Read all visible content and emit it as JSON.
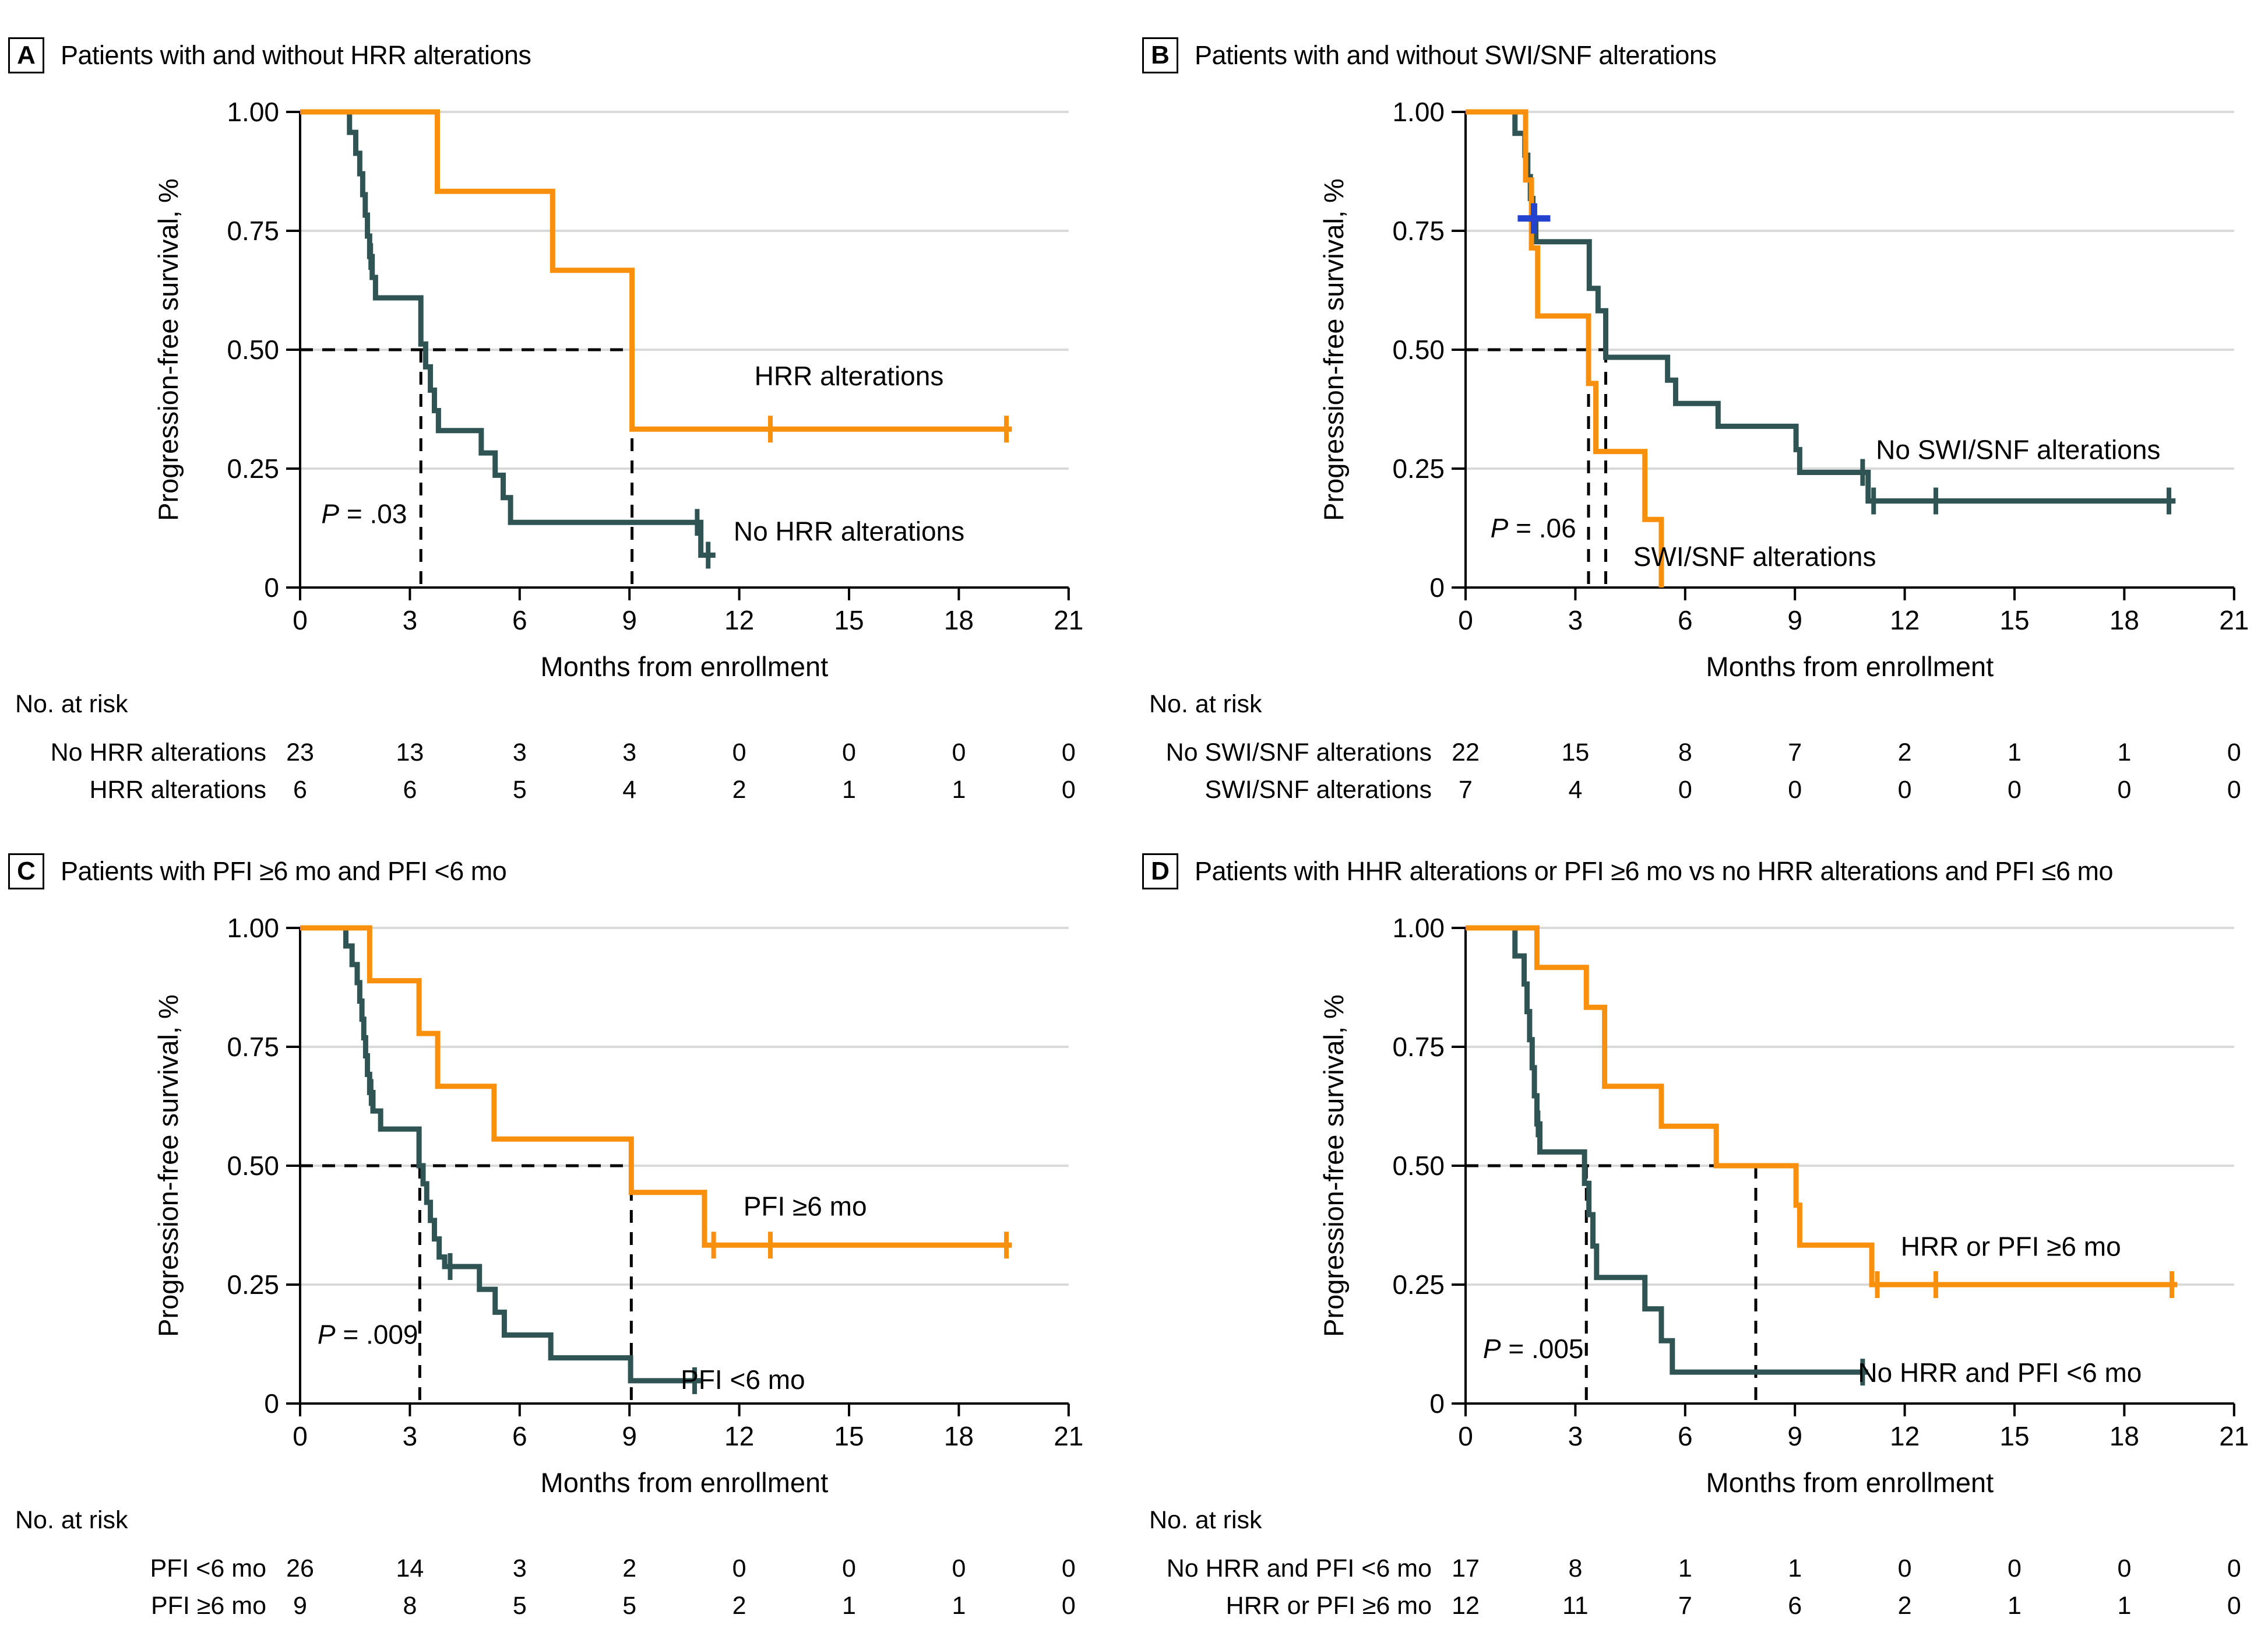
{
  "colors": {
    "orange": "#F8900E",
    "teal": "#2F5453",
    "blue_censor": "#2342CF",
    "grid": "#D9D9D9",
    "axis": "#000000"
  },
  "risk_header": "No. at risk",
  "axes": {
    "x_label": "Months from enrollment",
    "y_label": "Progression-free survival, %",
    "x_ticks": [
      0,
      3,
      6,
      9,
      12,
      15,
      18,
      21
    ],
    "y_ticks": [
      {
        "label": "1.00",
        "value": 1.0
      },
      {
        "label": "0.75",
        "value": 0.75
      },
      {
        "label": "0.50",
        "value": 0.5
      },
      {
        "label": "0.25",
        "value": 0.25
      },
      {
        "label": "0",
        "value": 0.0
      }
    ],
    "x_range": [
      0,
      21
    ],
    "y_range": [
      0,
      1
    ]
  },
  "chart_data": [
    {
      "type": "km_step",
      "letter": "A",
      "title": "Patients with and without HRR alterations",
      "p_value": "P = .03",
      "p_pos": [
        1.75,
        0.155
      ],
      "median_dashes": {
        "h_end": 9.07,
        "verticals": [
          3.3,
          9.07
        ]
      },
      "series": [
        {
          "name": "No HRR alterations",
          "color": "teal",
          "label_pos": [
            15.0,
            0.118
          ],
          "start": [
            0,
            1
          ],
          "steps": [
            [
              1.35,
              0.957
            ],
            [
              1.52,
              0.913
            ],
            [
              1.63,
              0.87
            ],
            [
              1.71,
              0.826
            ],
            [
              1.78,
              0.783
            ],
            [
              1.84,
              0.739
            ],
            [
              1.9,
              0.696
            ],
            [
              1.97,
              0.652
            ],
            [
              2.06,
              0.609
            ],
            [
              3.3,
              0.512
            ],
            [
              3.43,
              0.464
            ],
            [
              3.56,
              0.415
            ],
            [
              3.67,
              0.372
            ],
            [
              3.78,
              0.33
            ],
            [
              4.95,
              0.283
            ],
            [
              5.33,
              0.236
            ],
            [
              5.55,
              0.189
            ],
            [
              5.75,
              0.137
            ],
            [
              10.95,
              0.068
            ]
          ],
          "end": 11.35,
          "censors": [
            [
              1.93,
              0.696
            ],
            [
              10.85,
              0.137
            ],
            [
              11.15,
              0.068
            ]
          ]
        },
        {
          "name": "HRR alterations",
          "color": "orange",
          "label_pos": [
            15.0,
            0.445
          ],
          "start": [
            0,
            1
          ],
          "steps": [
            [
              3.75,
              0.833
            ],
            [
              6.9,
              0.667
            ],
            [
              9.07,
              0.333
            ]
          ],
          "end": 19.45,
          "censors": [
            [
              12.85,
              0.333
            ],
            [
              19.3,
              0.333
            ]
          ]
        }
      ],
      "risk_rows": [
        {
          "label": "No HRR alterations",
          "counts": [
            23,
            13,
            3,
            3,
            0,
            0,
            0,
            0
          ]
        },
        {
          "label": "HRR alterations",
          "counts": [
            6,
            6,
            5,
            4,
            2,
            1,
            1,
            0
          ]
        }
      ]
    },
    {
      "type": "km_step",
      "letter": "B",
      "title": "Patients with and without SWI/SNF alterations",
      "p_value": "P = .06",
      "p_pos": [
        1.85,
        0.125
      ],
      "median_dashes": {
        "h_end": 3.83,
        "verticals": [
          3.36,
          3.83
        ]
      },
      "blue_censor": [
        1.87,
        0.776
      ],
      "series": [
        {
          "name": "No SWI/SNF alterations",
          "color": "teal",
          "label_pos": [
            15.1,
            0.29
          ],
          "start": [
            0,
            1
          ],
          "steps": [
            [
              1.35,
              0.955
            ],
            [
              1.62,
              0.909
            ],
            [
              1.7,
              0.864
            ],
            [
              1.77,
              0.818
            ],
            [
              1.84,
              0.773
            ],
            [
              1.92,
              0.727
            ],
            [
              3.38,
              0.629
            ],
            [
              3.62,
              0.582
            ],
            [
              3.83,
              0.484
            ],
            [
              5.52,
              0.436
            ],
            [
              5.74,
              0.387
            ],
            [
              6.9,
              0.339
            ],
            [
              9.03,
              0.29
            ],
            [
              9.13,
              0.242
            ],
            [
              11.0,
              0.182
            ]
          ],
          "end": 19.4,
          "censors": [
            [
              10.85,
              0.242
            ],
            [
              11.15,
              0.182
            ],
            [
              12.85,
              0.182
            ],
            [
              19.22,
              0.182
            ]
          ]
        },
        {
          "name": "SWI/SNF alterations",
          "color": "orange",
          "label_pos": [
            7.9,
            0.065
          ],
          "start": [
            0,
            1
          ],
          "steps": [
            [
              1.64,
              0.857
            ],
            [
              1.8,
              0.714
            ],
            [
              1.97,
              0.571
            ],
            [
              3.36,
              0.429
            ],
            [
              3.56,
              0.286
            ],
            [
              4.9,
              0.143
            ],
            [
              5.35,
              0.0
            ]
          ],
          "end": 5.35,
          "censors": []
        }
      ],
      "risk_rows": [
        {
          "label": "No SWI/SNF alterations",
          "counts": [
            22,
            15,
            8,
            7,
            2,
            1,
            1,
            0
          ]
        },
        {
          "label": "SWI/SNF alterations",
          "counts": [
            7,
            4,
            0,
            0,
            0,
            0,
            0,
            0
          ]
        }
      ]
    },
    {
      "type": "km_step",
      "letter": "C",
      "title": "Patients with PFI ≥6 mo and PFI <6 mo",
      "p_value": "P = .009",
      "p_pos": [
        1.85,
        0.145
      ],
      "median_dashes": {
        "h_end": 9.05,
        "verticals": [
          3.27,
          9.05
        ]
      },
      "series": [
        {
          "name": "PFI <6 mo",
          "color": "teal",
          "label_pos": [
            12.1,
            0.05
          ],
          "start": [
            0,
            1
          ],
          "steps": [
            [
              1.25,
              0.962
            ],
            [
              1.42,
              0.923
            ],
            [
              1.56,
              0.885
            ],
            [
              1.63,
              0.846
            ],
            [
              1.69,
              0.808
            ],
            [
              1.74,
              0.769
            ],
            [
              1.79,
              0.731
            ],
            [
              1.84,
              0.692
            ],
            [
              1.9,
              0.654
            ],
            [
              1.99,
              0.615
            ],
            [
              2.2,
              0.577
            ],
            [
              3.25,
              0.5
            ],
            [
              3.36,
              0.462
            ],
            [
              3.46,
              0.423
            ],
            [
              3.56,
              0.385
            ],
            [
              3.67,
              0.346
            ],
            [
              3.8,
              0.308
            ],
            [
              3.95,
              0.288
            ],
            [
              4.9,
              0.24
            ],
            [
              5.33,
              0.192
            ],
            [
              5.58,
              0.144
            ],
            [
              6.85,
              0.096
            ],
            [
              9.03,
              0.048
            ]
          ],
          "end": 10.95,
          "censors": [
            [
              1.94,
              0.654
            ],
            [
              4.1,
              0.288
            ],
            [
              10.78,
              0.048
            ]
          ]
        },
        {
          "name": "PFI ≥6 mo",
          "color": "orange",
          "label_pos": [
            13.8,
            0.415
          ],
          "start": [
            0,
            1
          ],
          "steps": [
            [
              1.9,
              0.889
            ],
            [
              3.25,
              0.778
            ],
            [
              3.76,
              0.667
            ],
            [
              5.3,
              0.556
            ],
            [
              9.05,
              0.444
            ],
            [
              11.05,
              0.333
            ]
          ],
          "end": 19.45,
          "censors": [
            [
              11.3,
              0.333
            ],
            [
              12.85,
              0.333
            ],
            [
              19.3,
              0.333
            ]
          ]
        }
      ],
      "risk_rows": [
        {
          "label": "PFI <6 mo",
          "counts": [
            26,
            14,
            3,
            2,
            0,
            0,
            0,
            0
          ]
        },
        {
          "label": "PFI ≥6 mo",
          "counts": [
            9,
            8,
            5,
            5,
            2,
            1,
            1,
            0
          ]
        }
      ]
    },
    {
      "type": "km_step",
      "letter": "D",
      "title": "Patients with HHR alterations or PFI ≥6 mo vs no HRR alterations and PFI ≤6 mo",
      "p_value": "P = .005",
      "p_pos": [
        1.85,
        0.115
      ],
      "median_dashes": {
        "h_end": 7.93,
        "verticals": [
          3.3,
          7.93
        ]
      },
      "series": [
        {
          "name": "No HRR and PFI <6 mo",
          "color": "teal",
          "label_pos": [
            14.6,
            0.065
          ],
          "start": [
            0,
            1
          ],
          "steps": [
            [
              1.35,
              0.941
            ],
            [
              1.6,
              0.882
            ],
            [
              1.68,
              0.824
            ],
            [
              1.75,
              0.765
            ],
            [
              1.82,
              0.706
            ],
            [
              1.88,
              0.647
            ],
            [
              1.95,
              0.588
            ],
            [
              2.03,
              0.529
            ],
            [
              3.25,
              0.463
            ],
            [
              3.37,
              0.397
            ],
            [
              3.48,
              0.331
            ],
            [
              3.58,
              0.265
            ],
            [
              4.9,
              0.199
            ],
            [
              5.35,
              0.132
            ],
            [
              5.65,
              0.066
            ]
          ],
          "end": 11.0,
          "censors": [
            [
              1.98,
              0.588
            ],
            [
              10.85,
              0.066
            ]
          ]
        },
        {
          "name": "HRR or PFI ≥6 mo",
          "color": "orange",
          "label_pos": [
            14.9,
            0.33
          ],
          "start": [
            0,
            1
          ],
          "steps": [
            [
              1.95,
              0.917
            ],
            [
              3.3,
              0.833
            ],
            [
              3.8,
              0.667
            ],
            [
              5.35,
              0.583
            ],
            [
              6.85,
              0.5
            ],
            [
              9.03,
              0.417
            ],
            [
              9.13,
              0.333
            ],
            [
              11.1,
              0.25
            ]
          ],
          "end": 19.45,
          "censors": [
            [
              11.25,
              0.25
            ],
            [
              12.85,
              0.25
            ],
            [
              19.3,
              0.25
            ]
          ]
        }
      ],
      "risk_rows": [
        {
          "label": "No HRR and PFI <6 mo",
          "counts": [
            17,
            8,
            1,
            1,
            0,
            0,
            0,
            0
          ]
        },
        {
          "label": "HRR or PFI ≥6 mo",
          "counts": [
            12,
            11,
            7,
            6,
            2,
            1,
            1,
            0
          ]
        }
      ]
    }
  ]
}
